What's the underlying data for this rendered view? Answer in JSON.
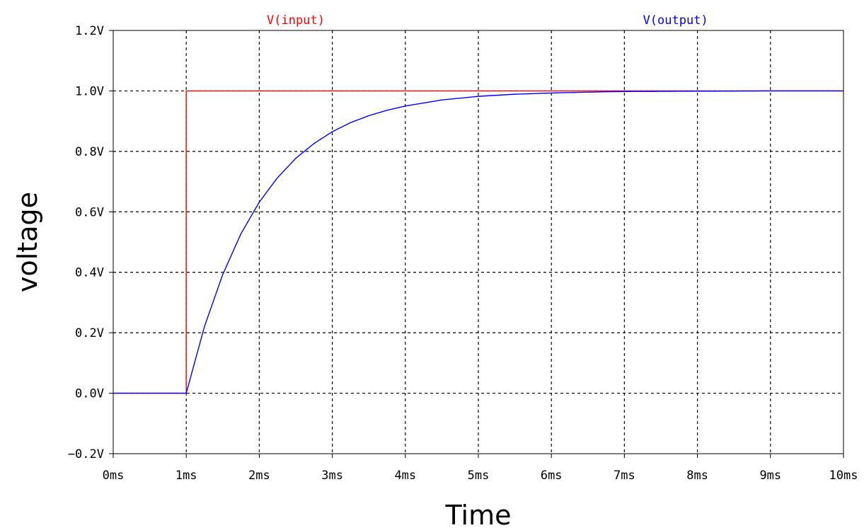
{
  "chart_data": {
    "type": "line",
    "title": "",
    "xlabel": "Time",
    "ylabel": "voltage",
    "xlim": [
      0,
      10
    ],
    "ylim": [
      -0.2,
      1.2
    ],
    "x_unit": "ms",
    "y_unit": "V",
    "x_ticks": [
      0,
      1,
      2,
      3,
      4,
      5,
      6,
      7,
      8,
      9,
      10
    ],
    "x_tick_labels": [
      "0ms",
      "1ms",
      "2ms",
      "3ms",
      "4ms",
      "5ms",
      "6ms",
      "7ms",
      "8ms",
      "9ms",
      "10ms"
    ],
    "y_ticks": [
      -0.2,
      0.0,
      0.2,
      0.4,
      0.6,
      0.8,
      1.0,
      1.2
    ],
    "y_tick_labels": [
      "−0.2V",
      "0.0V",
      "0.2V",
      "0.4V",
      "0.6V",
      "0.8V",
      "1.0V",
      "1.2V"
    ],
    "grid": true,
    "grid_style": "dashed",
    "legend_placement": "top",
    "series": [
      {
        "name": "V(input)",
        "color": "#ff0000",
        "x": [
          0,
          1,
          1,
          10
        ],
        "y": [
          0,
          0,
          1,
          1
        ]
      },
      {
        "name": "V(output)",
        "color": "#0000ff",
        "x": [
          0,
          1,
          1.25,
          1.5,
          1.75,
          2,
          2.25,
          2.5,
          2.75,
          3,
          3.25,
          3.5,
          3.75,
          4,
          4.5,
          5,
          5.5,
          6,
          6.5,
          7,
          8,
          9,
          10
        ],
        "y": [
          0,
          0,
          0.221,
          0.393,
          0.528,
          0.632,
          0.713,
          0.777,
          0.826,
          0.865,
          0.895,
          0.918,
          0.936,
          0.95,
          0.97,
          0.982,
          0.989,
          0.993,
          0.996,
          0.998,
          0.999,
          1.0,
          1.0
        ]
      }
    ]
  }
}
